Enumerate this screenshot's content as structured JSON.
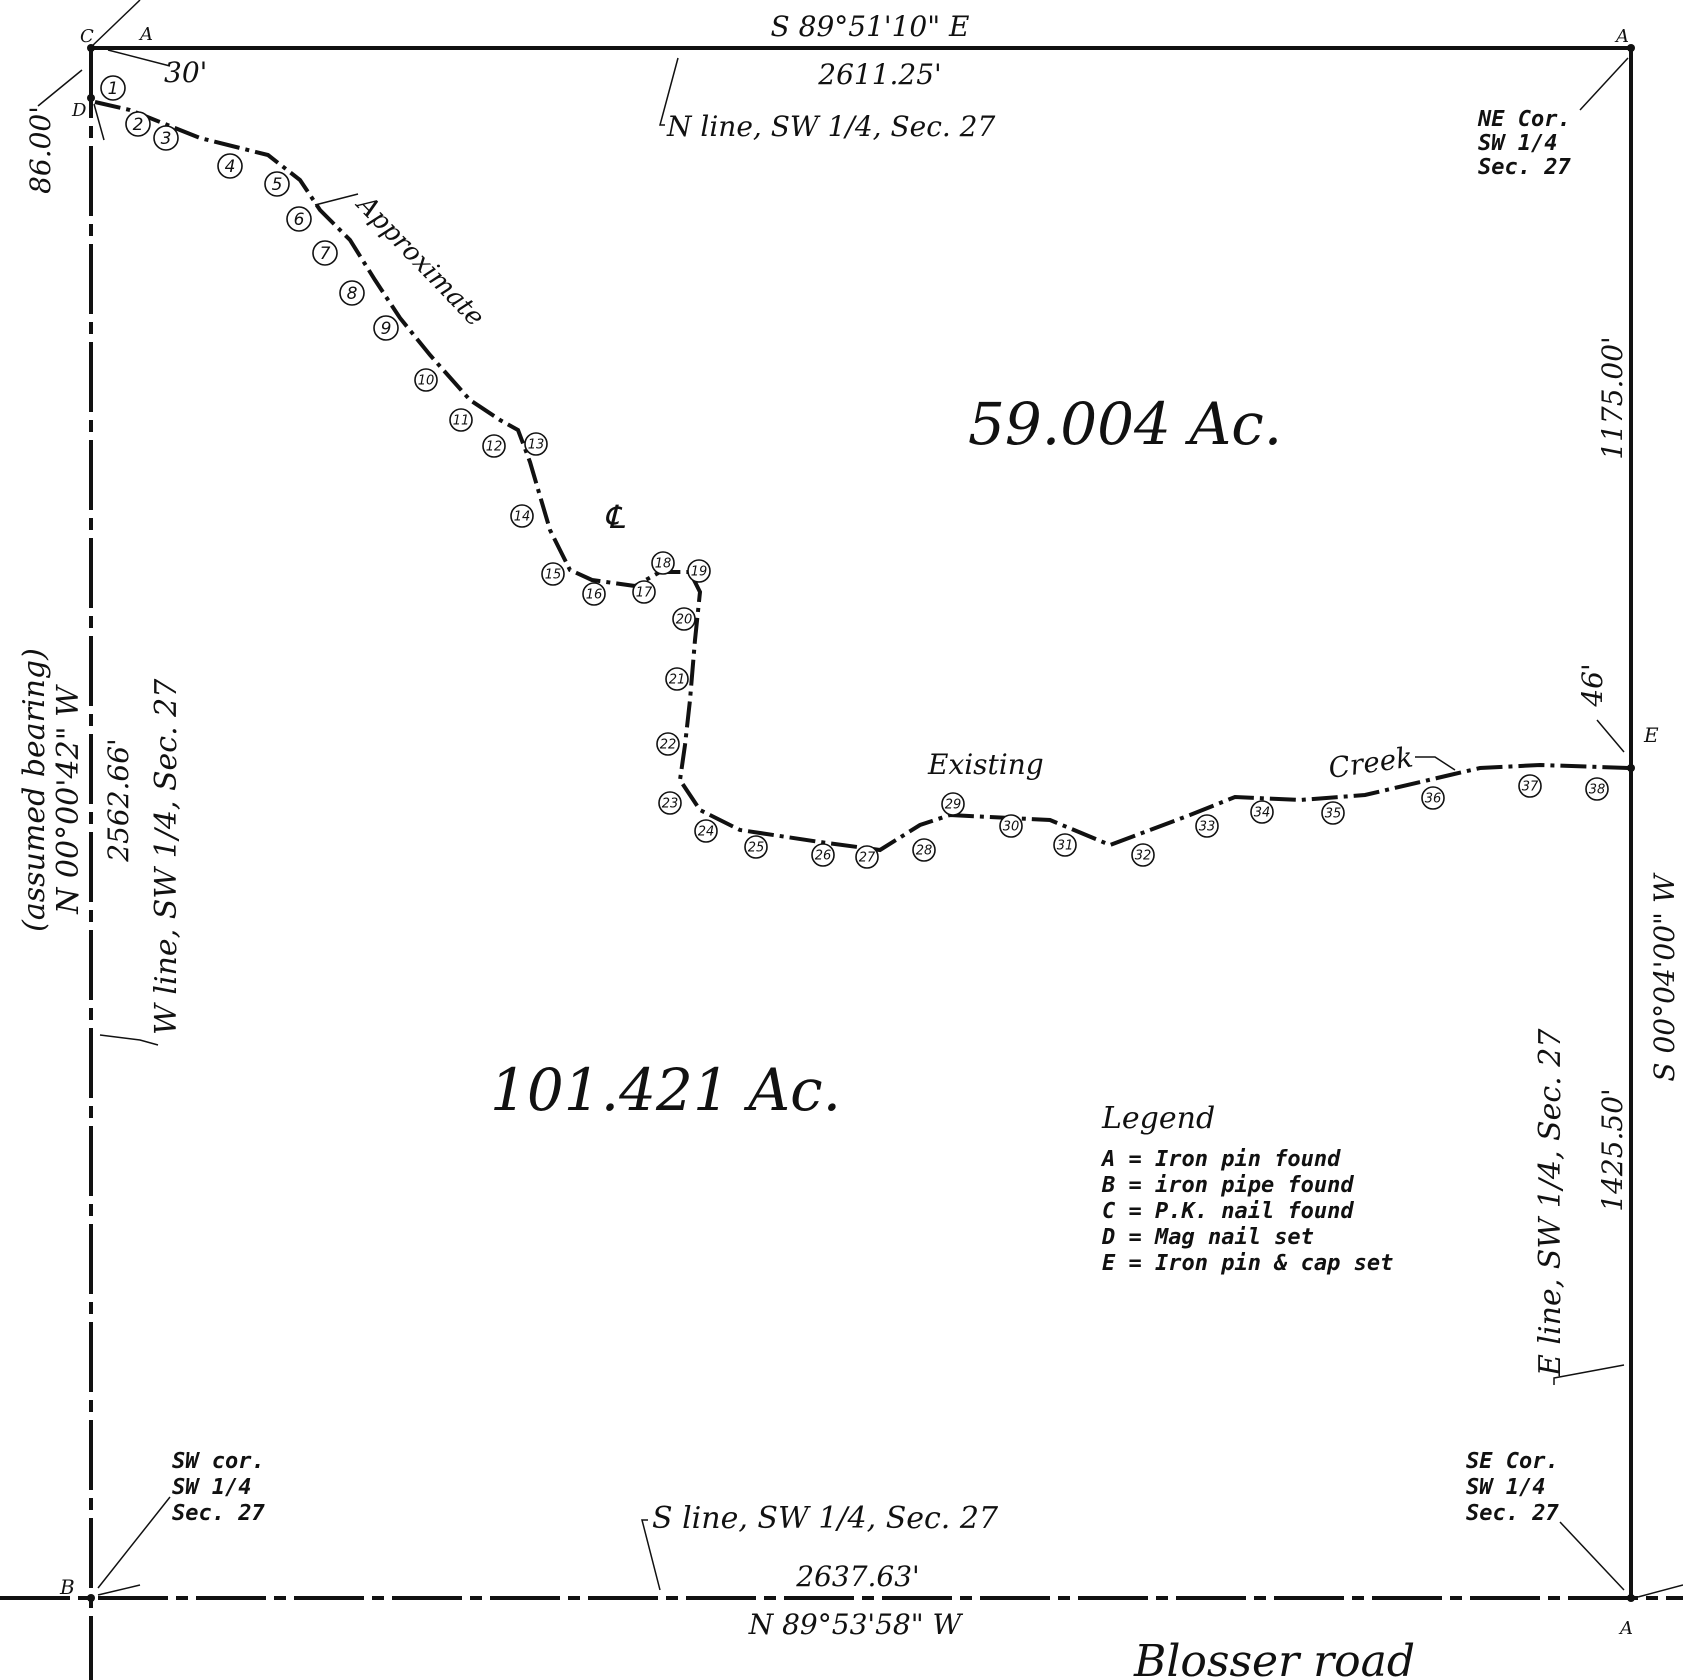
{
  "north": {
    "bearing": "S 89°51'10\" E",
    "distance": "2611.25'",
    "label": "N line, SW 1/4, Sec. 27"
  },
  "south": {
    "label": "S line, SW 1/4, Sec. 27",
    "distance": "2637.63'",
    "bearing": "N 89°53'58\" W"
  },
  "west": {
    "assumed": "(assumed bearing)",
    "bearing": "N 00°00'42\" W",
    "distance": "2562.66'",
    "label": "W line, SW 1/4, Sec. 27",
    "offset": "86.00'"
  },
  "east": {
    "distance_north": "1175.00'",
    "bearing": "S 00°04'00\" W",
    "distance_south": "1425.50'",
    "label": "E line, SW 1/4, Sec. 27",
    "offset": "46'"
  },
  "road_offset": "30'",
  "corners": {
    "nw_top": "C",
    "nw_a": "A",
    "nw_d": "D",
    "ne_letter": "A",
    "ne": [
      "NE Cor.",
      "SW 1/4",
      "Sec. 27"
    ],
    "sw_letter": "B",
    "sw": [
      "SW cor.",
      "SW 1/4",
      "Sec. 27"
    ],
    "se_letter": "A",
    "se": [
      "SE Cor.",
      "SW 1/4",
      "Sec. 27"
    ],
    "e_letter": "E"
  },
  "areas": {
    "north": "59.004 Ac.",
    "south": "101.421 Ac."
  },
  "creek": {
    "word1": "Approximate",
    "centerline": "℄",
    "word2": "Existing",
    "word3": "Creek"
  },
  "legend": {
    "title": "Legend",
    "items": [
      "A = Iron pin found",
      "B = iron pipe found",
      "C = P.K. nail found",
      "D = Mag nail set",
      "E = Iron pin & cap set"
    ]
  },
  "road": "Blosser road",
  "points": [
    "1",
    "2",
    "3",
    "4",
    "5",
    "6",
    "7",
    "8",
    "9",
    "10",
    "11",
    "12",
    "13",
    "14",
    "15",
    "16",
    "17",
    "18",
    "19",
    "20",
    "21",
    "22",
    "23",
    "24",
    "25",
    "26",
    "27",
    "28",
    "29",
    "30",
    "31",
    "32",
    "33",
    "34",
    "35",
    "36",
    "37",
    "38"
  ]
}
